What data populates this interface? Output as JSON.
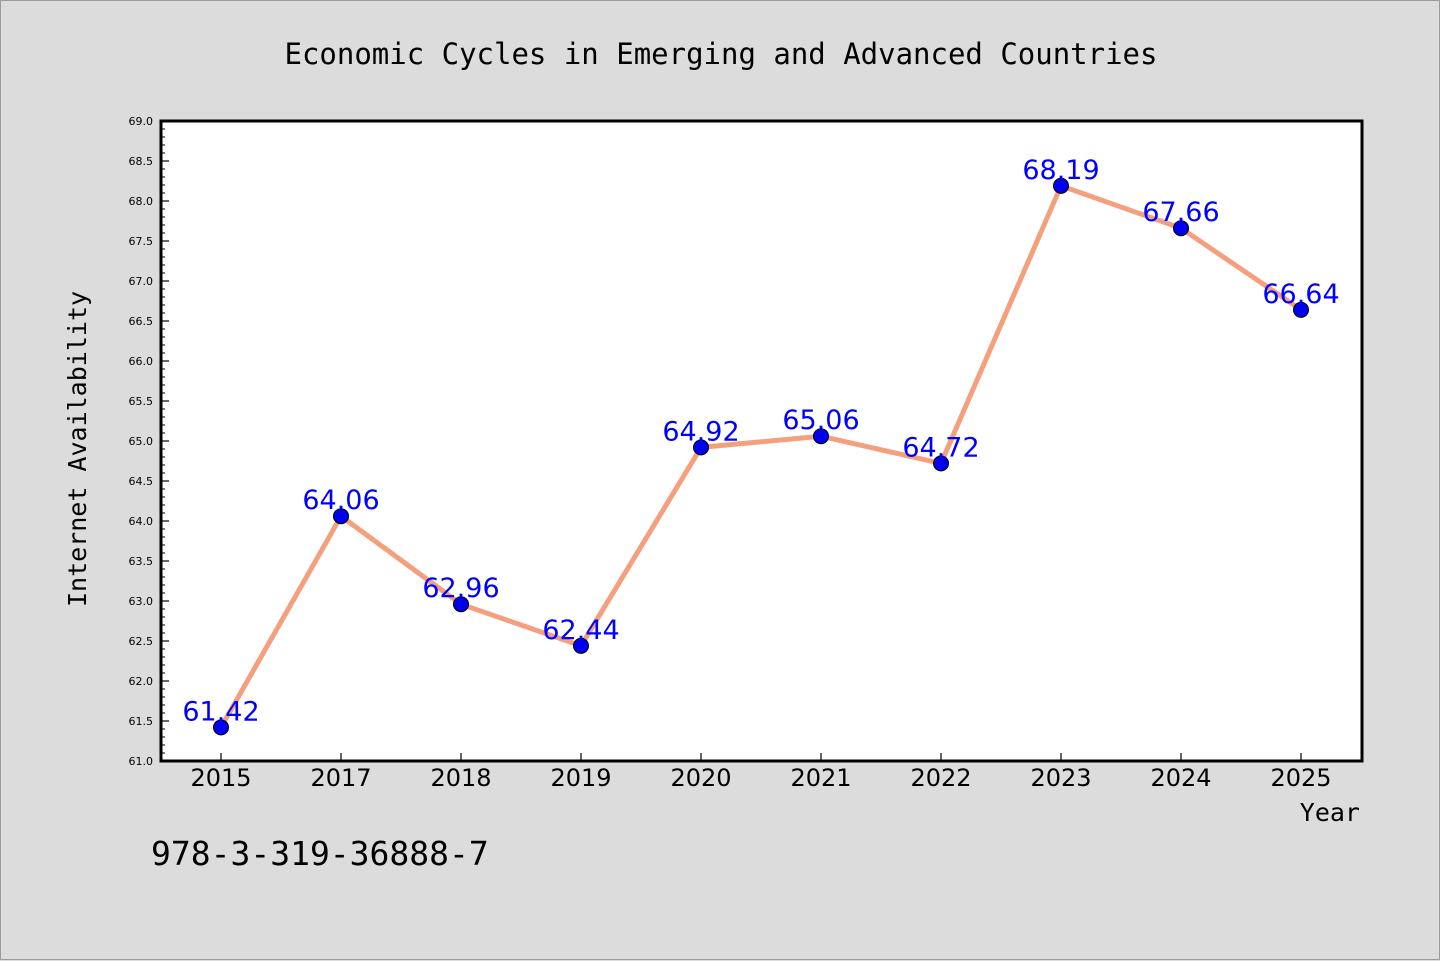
{
  "chart_data": {
    "type": "line",
    "title": "Economic Cycles in Emerging and Advanced Countries",
    "xlabel": "Year",
    "ylabel": "Internet Availability",
    "categories": [
      "2015",
      "2017",
      "2018",
      "2019",
      "2020",
      "2021",
      "2022",
      "2023",
      "2024",
      "2025"
    ],
    "series": [
      {
        "values": [
          61.42,
          64.06,
          62.96,
          62.44,
          64.92,
          65.06,
          64.72,
          68.19,
          67.66,
          66.64
        ],
        "labels": [
          "61.42",
          "64.06",
          "62.96",
          "62.44",
          "64.92",
          "65.06",
          "64.72",
          "68.19",
          "67.66",
          "66.64"
        ]
      }
    ],
    "ylim": [
      61.0,
      69.0
    ],
    "yticks": [
      "61.0",
      "61.5",
      "62.0",
      "62.5",
      "63.0",
      "63.5",
      "64.0",
      "64.5",
      "65.0",
      "65.5",
      "66.0",
      "66.5",
      "67.0",
      "67.5",
      "68.0",
      "68.5",
      "69.0"
    ],
    "grid": false,
    "legend": "none",
    "annotation": "978-3-319-36888-7",
    "colors": {
      "line": "#f4a07f",
      "marker": "#0000ee",
      "label": "#0000ff",
      "background": "#dcdcdc",
      "plot_area": "#ffffff"
    }
  }
}
